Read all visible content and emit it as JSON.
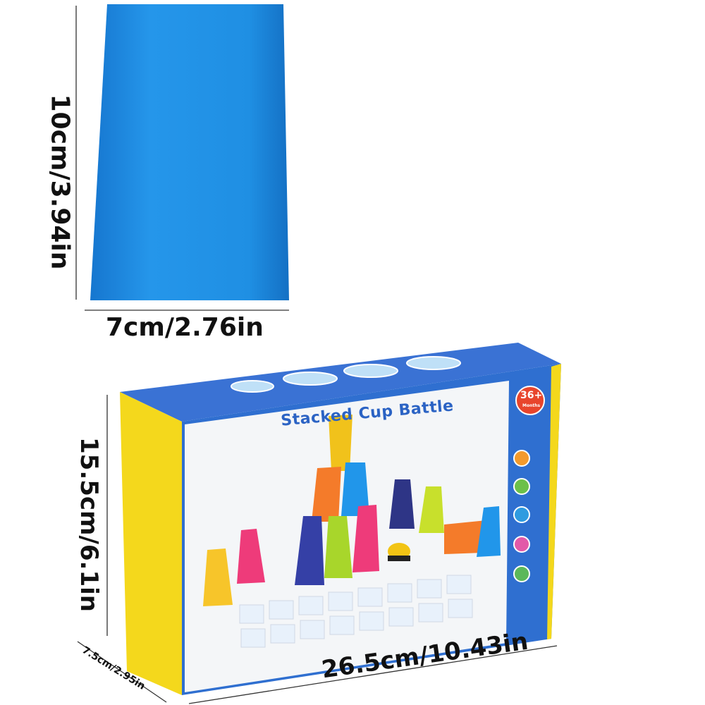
{
  "cup": {
    "color": "#1f8fe3",
    "height_label": "10cm/3.94in",
    "width_label": "7cm/2.76in"
  },
  "box": {
    "title": "Stacked Cup Battle",
    "age_badge_number": "36+",
    "age_badge_unit": "Months",
    "height_label": "15.5cm/6.1in",
    "length_label": "26.5cm/10.43in",
    "depth_label": "7.5cm/2.95in",
    "colors": {
      "top": "#2f6fd0",
      "side": "#f4d81c",
      "title": "#2b63c4",
      "badge": "#e8452c"
    }
  }
}
